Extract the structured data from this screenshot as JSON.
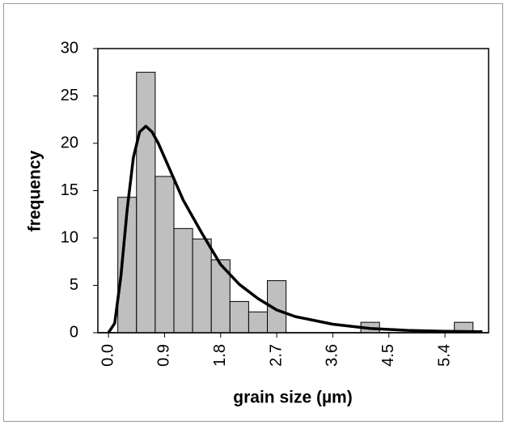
{
  "chart_data": {
    "type": "histogram",
    "x_label": "grain size (µm)",
    "y_label": "frequency",
    "bins": [
      0.15,
      0.45,
      0.75,
      1.05,
      1.35,
      1.65,
      1.95,
      2.25,
      2.55,
      2.85,
      3.15,
      3.45,
      3.75,
      4.05,
      4.35,
      4.65,
      4.95,
      5.25,
      5.55,
      5.85
    ],
    "values": [
      14.3,
      27.5,
      16.5,
      11,
      9.9,
      7.7,
      3.3,
      2.2,
      5.5,
      0,
      0,
      0,
      0,
      1.1,
      0,
      0,
      0,
      0,
      1.1
    ],
    "color": "#bfbfbf",
    "curve": {
      "x": [
        0,
        0.1,
        0.2,
        0.3,
        0.4,
        0.5,
        0.6,
        0.7,
        0.8,
        1.0,
        1.2,
        1.5,
        1.8,
        2.1,
        2.4,
        2.7,
        3.0,
        3.6,
        4.2,
        4.8,
        5.4,
        6.0
      ],
      "values": [
        0,
        1,
        6,
        13,
        18.5,
        21.2,
        21.8,
        21.2,
        20,
        17,
        14,
        10.5,
        7.2,
        5.1,
        3.6,
        2.4,
        1.7,
        0.9,
        0.45,
        0.25,
        0.15,
        0.1
      ],
      "color": "#000000"
    },
    "xlim": [
      -0.17,
      6.1
    ],
    "ylim": [
      0,
      30
    ],
    "xticks": [
      {
        "value": 0,
        "label": "0.0"
      },
      0.9,
      1.8,
      2.7,
      3.6,
      4.5,
      5.4
    ],
    "yticks": [
      0,
      5,
      10,
      15,
      20,
      25,
      30
    ]
  }
}
